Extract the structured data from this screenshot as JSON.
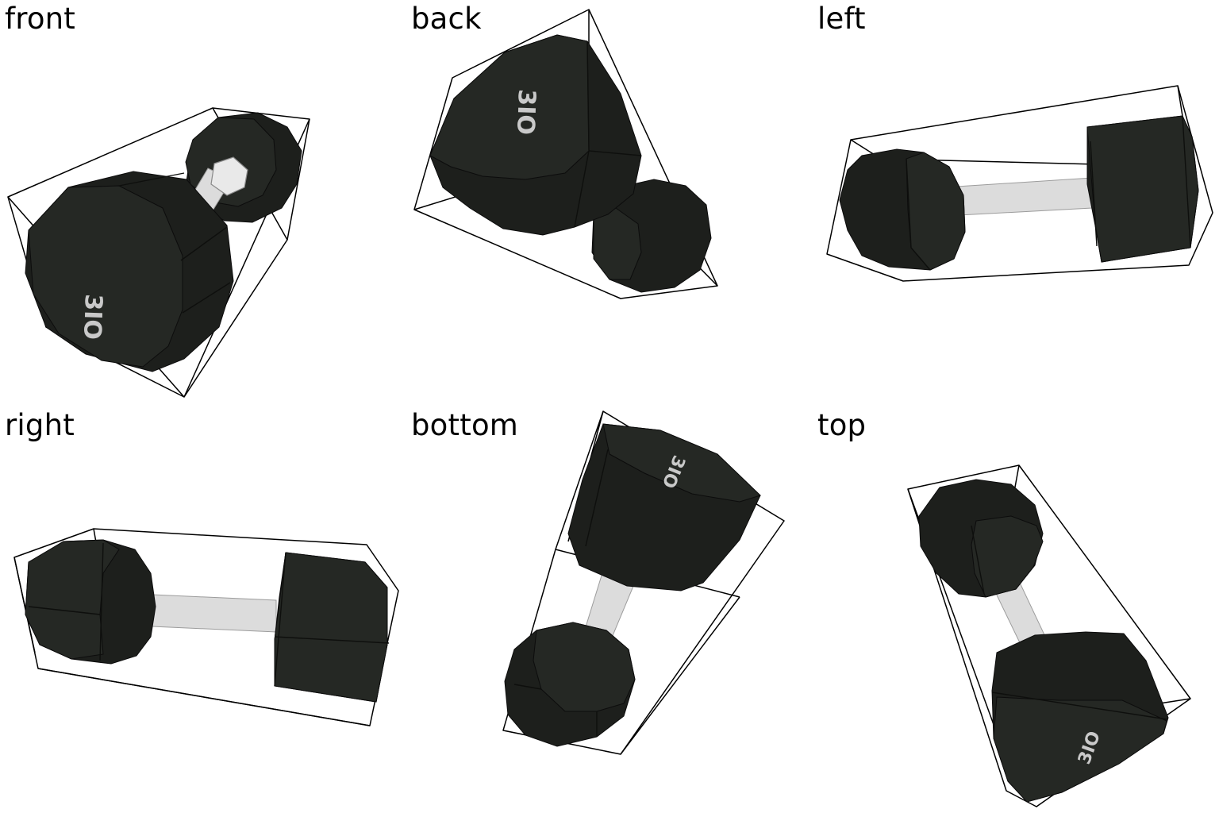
{
  "views": [
    {
      "label": "front",
      "logo": "3IO"
    },
    {
      "label": "back",
      "logo": "3IO"
    },
    {
      "label": "left"
    },
    {
      "label": "right"
    },
    {
      "label": "bottom",
      "logo": "3IO"
    },
    {
      "label": "top",
      "logo": "3IO"
    }
  ]
}
